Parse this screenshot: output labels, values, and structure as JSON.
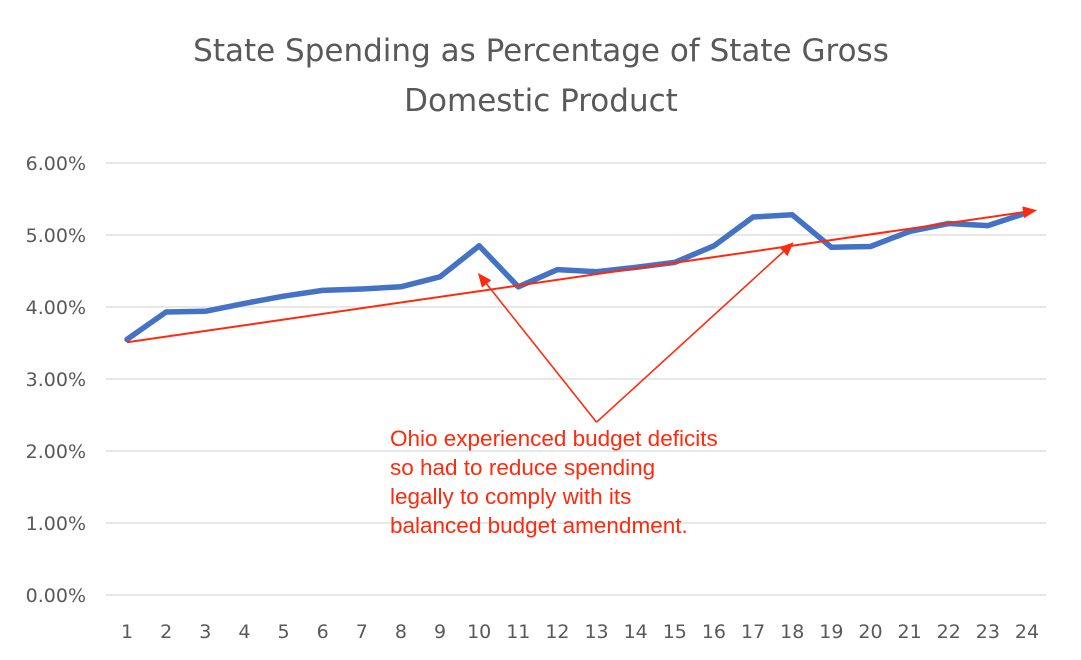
{
  "chart_data": {
    "type": "line",
    "title": "State Spending as Percentage of State Gross Domestic Product",
    "title_lines": [
      "State Spending as Percentage of State Gross",
      "Domestic Product"
    ],
    "xlabel": "",
    "ylabel": "",
    "x": [
      1,
      2,
      3,
      4,
      5,
      6,
      7,
      8,
      9,
      10,
      11,
      12,
      13,
      14,
      15,
      16,
      17,
      18,
      19,
      20,
      21,
      22,
      23,
      24
    ],
    "x_tick_labels": [
      "1",
      "2",
      "3",
      "4",
      "5",
      "6",
      "7",
      "8",
      "9",
      "10",
      "11",
      "12",
      "13",
      "14",
      "15",
      "16",
      "17",
      "18",
      "19",
      "20",
      "21",
      "22",
      "23",
      "24"
    ],
    "series": [
      {
        "values": [
          3.55,
          3.93,
          3.94,
          4.05,
          4.15,
          4.23,
          4.25,
          4.28,
          4.42,
          4.85,
          4.28,
          4.52,
          4.49,
          4.55,
          4.62,
          4.85,
          5.25,
          5.28,
          4.83,
          4.84,
          5.05,
          5.16,
          5.13,
          5.31
        ],
        "color": "#4472c4"
      }
    ],
    "trendline": {
      "start": [
        1,
        3.51
      ],
      "end": [
        24,
        5.34
      ],
      "color": "#ff2a0d"
    },
    "y_ticks": [
      0,
      1,
      2,
      3,
      4,
      5,
      6
    ],
    "y_tick_labels": [
      "0.00%",
      "1.00%",
      "2.00%",
      "3.00%",
      "4.00%",
      "5.00%",
      "6.00%"
    ],
    "ylim": [
      0,
      6
    ],
    "grid": true,
    "legend": "none",
    "annotation": {
      "lines": [
        "Ohio experienced budget deficits",
        "so had to reduce spending",
        "legally to comply with its",
        "balanced budget amendment."
      ],
      "color": "#ff2a0d",
      "arrow_origin": [
        13,
        2.4
      ],
      "arrow_targets": [
        [
          10,
          4.45
        ],
        [
          18,
          4.88
        ]
      ]
    }
  }
}
